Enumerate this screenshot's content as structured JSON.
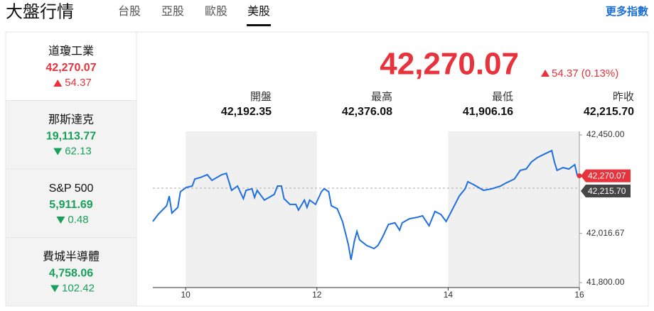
{
  "header": {
    "title": "大盤行情",
    "tabs": [
      {
        "label": "台股",
        "active": false
      },
      {
        "label": "亞股",
        "active": false
      },
      {
        "label": "歐股",
        "active": false
      },
      {
        "label": "美股",
        "active": true
      }
    ],
    "more_link": "更多指數"
  },
  "sidebar": [
    {
      "name": "道瓊工業",
      "price": "42,270.07",
      "change": "54.37",
      "direction": "up",
      "selected": true
    },
    {
      "name": "那斯達克",
      "price": "19,113.77",
      "change": "62.13",
      "direction": "down",
      "selected": false
    },
    {
      "name": "S&P 500",
      "price": "5,911.69",
      "change": "0.48",
      "direction": "down",
      "selected": false
    },
    {
      "name": "費城半導體",
      "price": "4,758.06",
      "change": "102.42",
      "direction": "down",
      "selected": false
    }
  ],
  "quote": {
    "price": "42,270.07",
    "change": "54.37 (0.13%)",
    "direction": "up",
    "stats": [
      {
        "label": "開盤",
        "value": "42,192.35"
      },
      {
        "label": "最高",
        "value": "42,376.08"
      },
      {
        "label": "最低",
        "value": "41,906.16"
      },
      {
        "label": "昨收",
        "value": "42,215.70"
      }
    ]
  },
  "chart_data": {
    "type": "line",
    "x": [
      9.5,
      9.58,
      9.71,
      9.75,
      9.79,
      9.88,
      9.92,
      10.01,
      10.1,
      10.14,
      10.23,
      10.33,
      10.4,
      10.55,
      10.62,
      10.7,
      10.79,
      10.88,
      10.92,
      11.01,
      11.05,
      11.09,
      11.2,
      11.35,
      11.4,
      11.46,
      11.5,
      11.59,
      11.68,
      11.72,
      11.81,
      11.85,
      11.89,
      11.98,
      12.07,
      12.11,
      12.18,
      12.22,
      12.31,
      12.39,
      12.44,
      12.48,
      12.52,
      12.57,
      12.61,
      12.65,
      12.76,
      12.87,
      12.93,
      13.0,
      13.09,
      13.19,
      13.26,
      13.3,
      13.41,
      13.54,
      13.61,
      13.71,
      13.8,
      13.89,
      13.97,
      14.06,
      14.17,
      14.26,
      14.3,
      14.39,
      14.54,
      14.67,
      14.8,
      14.88,
      15.01,
      15.1,
      15.19,
      15.27,
      15.36,
      15.45,
      15.58,
      15.62,
      15.66,
      15.75,
      15.84,
      15.93,
      15.97
    ],
    "series": [
      {
        "color": "#1f6fe0",
        "values": [
          42069,
          42100,
          42138,
          42181,
          42106,
          42131,
          42200,
          42219,
          42225,
          42256,
          42263,
          42275,
          42250,
          42275,
          42281,
          42206,
          42225,
          42169,
          42206,
          42213,
          42175,
          42206,
          42163,
          42188,
          42225,
          42225,
          42169,
          42144,
          42144,
          42119,
          42163,
          42131,
          42163,
          42144,
          42200,
          42213,
          42200,
          42138,
          42125,
          42069,
          42013,
          41966,
          41900,
          41981,
          42025,
          41988,
          41963,
          41950,
          41963,
          42000,
          42056,
          42063,
          42031,
          42063,
          42081,
          42088,
          42094,
          42050,
          42113,
          42100,
          42069,
          42119,
          42181,
          42213,
          42244,
          42231,
          42206,
          42213,
          42225,
          42238,
          42256,
          42294,
          42300,
          42331,
          42350,
          42363,
          42381,
          42331,
          42294,
          42306,
          42300,
          42319,
          42270
        ]
      }
    ],
    "xlim": [
      9.5,
      16
    ],
    "xticks": [
      10,
      12,
      14,
      16
    ],
    "ylim": [
      41800,
      42450
    ],
    "yticks": [
      {
        "value": 41800,
        "label": "41,800.00"
      },
      {
        "value": 42016.67,
        "label": "42,016.67"
      },
      {
        "value": 42450,
        "label": "42,450.00"
      }
    ],
    "markers": [
      {
        "value": 42270.07,
        "label": "42,270.07",
        "color": "#e8323c",
        "dashed_line": false
      },
      {
        "value": 42215.7,
        "label": "42,215.70",
        "color": "#464646",
        "dashed_line": true
      }
    ]
  }
}
